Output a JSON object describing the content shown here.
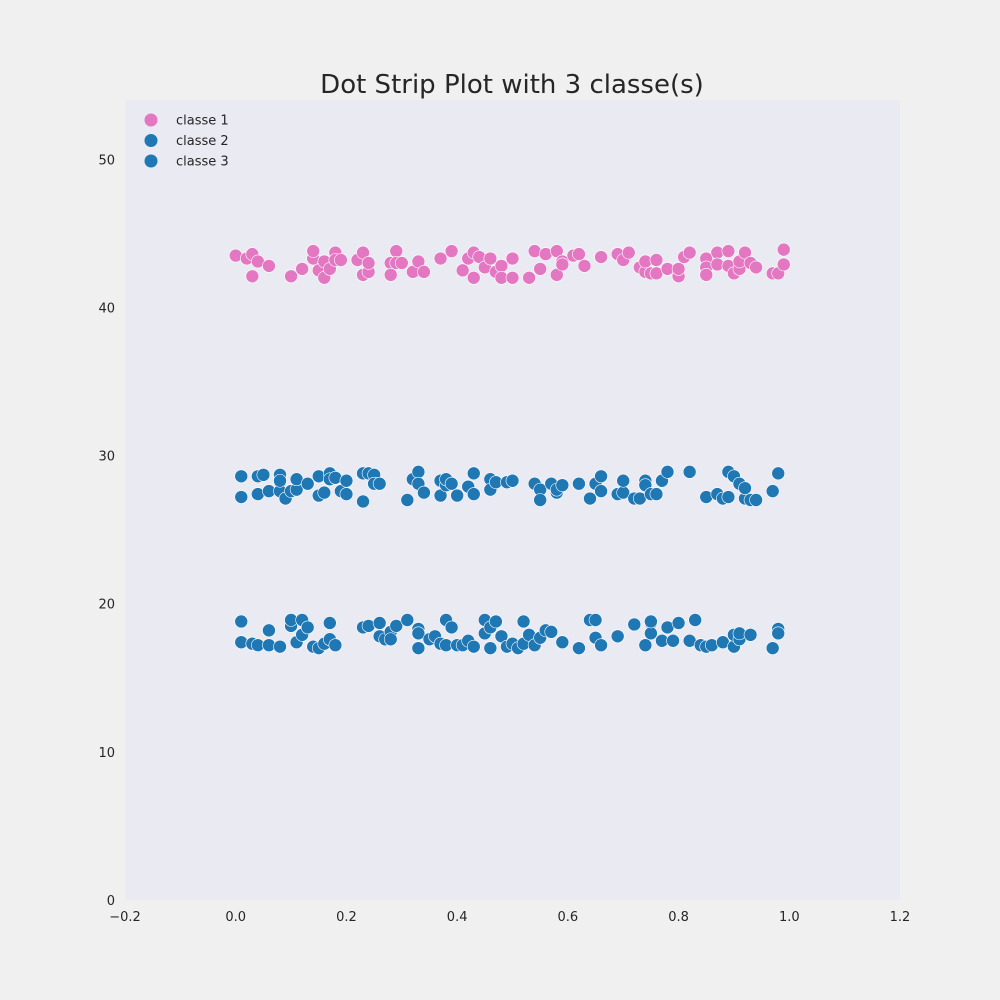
{
  "chart_data": {
    "type": "scatter",
    "title": "Dot Strip Plot with 3 classe(s)",
    "xlabel": "",
    "ylabel": "",
    "xlim": [
      -0.2,
      1.2
    ],
    "ylim": [
      0,
      54
    ],
    "xticks": [
      -0.2,
      0.0,
      0.2,
      0.4,
      0.6,
      0.8,
      1.0,
      1.2
    ],
    "yticks": [
      0,
      10,
      20,
      30,
      40,
      50
    ],
    "xtick_labels": [
      "−0.2",
      "0.0",
      "0.2",
      "0.4",
      "0.6",
      "0.8",
      "1.0",
      "1.2"
    ],
    "ytick_labels": [
      "0",
      "10",
      "20",
      "30",
      "40",
      "50"
    ],
    "grid": false,
    "legend_position": "top-left",
    "background_color": "#eaeaf2",
    "series": [
      {
        "name": "classe 1",
        "color": "#e377c2",
        "x": [
          0.0,
          0.02,
          0.03,
          0.03,
          0.04,
          0.06,
          0.1,
          0.12,
          0.14,
          0.14,
          0.15,
          0.16,
          0.16,
          0.17,
          0.18,
          0.18,
          0.19,
          0.22,
          0.23,
          0.23,
          0.24,
          0.24,
          0.28,
          0.28,
          0.29,
          0.29,
          0.3,
          0.32,
          0.33,
          0.34,
          0.37,
          0.39,
          0.41,
          0.42,
          0.43,
          0.43,
          0.44,
          0.45,
          0.46,
          0.47,
          0.48,
          0.48,
          0.5,
          0.5,
          0.53,
          0.54,
          0.55,
          0.56,
          0.58,
          0.58,
          0.59,
          0.59,
          0.61,
          0.62,
          0.63,
          0.66,
          0.69,
          0.7,
          0.71,
          0.73,
          0.74,
          0.74,
          0.75,
          0.76,
          0.76,
          0.78,
          0.8,
          0.8,
          0.81,
          0.82,
          0.85,
          0.85,
          0.85,
          0.87,
          0.87,
          0.89,
          0.89,
          0.9,
          0.91,
          0.91,
          0.92,
          0.93,
          0.94,
          0.97,
          0.98,
          0.99,
          0.99
        ],
        "y": [
          43.5,
          43.3,
          43.6,
          42.1,
          43.1,
          42.8,
          42.1,
          42.6,
          43.3,
          43.8,
          42.5,
          42.0,
          43.1,
          42.6,
          43.7,
          43.2,
          43.2,
          43.2,
          43.7,
          42.2,
          42.4,
          43.0,
          43.0,
          42.2,
          43.8,
          43.0,
          43.0,
          42.4,
          43.1,
          42.4,
          43.3,
          43.8,
          42.5,
          43.3,
          42.0,
          43.7,
          43.4,
          42.7,
          43.3,
          42.4,
          42.8,
          42.0,
          43.3,
          42.0,
          42.0,
          43.8,
          42.6,
          43.6,
          42.2,
          43.8,
          43.1,
          42.9,
          43.5,
          43.6,
          42.8,
          43.4,
          43.6,
          43.2,
          43.7,
          42.7,
          42.4,
          43.1,
          42.3,
          42.3,
          43.2,
          42.6,
          42.1,
          42.6,
          43.4,
          43.7,
          43.3,
          42.7,
          42.2,
          43.7,
          42.9,
          42.8,
          43.8,
          42.3,
          42.6,
          43.1,
          43.7,
          43.0,
          42.7,
          42.3,
          42.3,
          42.9,
          43.9
        ]
      },
      {
        "name": "classe 2",
        "color": "#1f77b4",
        "x": [
          0.01,
          0.01,
          0.04,
          0.04,
          0.05,
          0.06,
          0.08,
          0.08,
          0.08,
          0.08,
          0.09,
          0.1,
          0.11,
          0.11,
          0.13,
          0.15,
          0.15,
          0.16,
          0.17,
          0.17,
          0.18,
          0.19,
          0.2,
          0.2,
          0.23,
          0.23,
          0.24,
          0.25,
          0.25,
          0.26,
          0.31,
          0.32,
          0.33,
          0.33,
          0.34,
          0.37,
          0.37,
          0.38,
          0.38,
          0.39,
          0.4,
          0.42,
          0.43,
          0.43,
          0.46,
          0.46,
          0.47,
          0.49,
          0.5,
          0.54,
          0.55,
          0.55,
          0.57,
          0.58,
          0.58,
          0.59,
          0.62,
          0.64,
          0.65,
          0.66,
          0.66,
          0.69,
          0.7,
          0.7,
          0.72,
          0.73,
          0.74,
          0.74,
          0.75,
          0.76,
          0.77,
          0.78,
          0.82,
          0.85,
          0.87,
          0.88,
          0.89,
          0.89,
          0.9,
          0.91,
          0.92,
          0.92,
          0.93,
          0.94,
          0.97,
          0.98
        ],
        "y": [
          28.6,
          27.2,
          27.4,
          28.6,
          28.7,
          27.6,
          28.2,
          28.7,
          27.6,
          28.3,
          27.1,
          27.6,
          27.7,
          28.4,
          28.1,
          28.6,
          27.3,
          27.5,
          28.8,
          28.4,
          28.5,
          27.6,
          28.3,
          27.4,
          26.9,
          28.8,
          28.8,
          28.7,
          28.1,
          28.1,
          27.0,
          28.4,
          28.9,
          28.1,
          27.5,
          28.3,
          27.3,
          28.0,
          28.4,
          28.1,
          27.3,
          27.9,
          28.8,
          27.4,
          28.4,
          27.7,
          28.2,
          28.2,
          28.3,
          28.1,
          27.7,
          27.0,
          28.1,
          27.5,
          27.7,
          28.0,
          28.1,
          27.1,
          28.1,
          28.6,
          27.6,
          27.4,
          27.5,
          28.3,
          27.1,
          27.1,
          28.3,
          28.0,
          27.4,
          27.4,
          28.3,
          28.9,
          28.9,
          27.2,
          27.4,
          27.1,
          27.2,
          28.9,
          28.6,
          28.1,
          27.1,
          27.8,
          27.0,
          27.0,
          27.6,
          28.8
        ]
      },
      {
        "name": "classe 3",
        "color": "#1f77b4",
        "x": [
          0.01,
          0.01,
          0.03,
          0.04,
          0.06,
          0.06,
          0.08,
          0.1,
          0.1,
          0.11,
          0.12,
          0.12,
          0.13,
          0.14,
          0.15,
          0.16,
          0.17,
          0.17,
          0.18,
          0.23,
          0.24,
          0.26,
          0.26,
          0.27,
          0.28,
          0.28,
          0.29,
          0.31,
          0.33,
          0.33,
          0.33,
          0.35,
          0.36,
          0.37,
          0.38,
          0.38,
          0.39,
          0.4,
          0.41,
          0.42,
          0.43,
          0.45,
          0.45,
          0.46,
          0.46,
          0.47,
          0.48,
          0.49,
          0.5,
          0.51,
          0.52,
          0.52,
          0.53,
          0.54,
          0.55,
          0.56,
          0.57,
          0.59,
          0.62,
          0.64,
          0.65,
          0.65,
          0.66,
          0.69,
          0.72,
          0.74,
          0.75,
          0.75,
          0.75,
          0.77,
          0.78,
          0.79,
          0.8,
          0.82,
          0.83,
          0.84,
          0.85,
          0.86,
          0.88,
          0.9,
          0.9,
          0.91,
          0.91,
          0.93,
          0.97,
          0.98,
          0.98
        ],
        "y": [
          18.8,
          17.4,
          17.3,
          17.2,
          17.2,
          18.2,
          17.1,
          18.5,
          18.9,
          17.4,
          17.9,
          18.9,
          18.4,
          17.1,
          17.0,
          17.3,
          17.6,
          18.7,
          17.2,
          18.4,
          18.5,
          17.8,
          18.7,
          17.6,
          18.1,
          17.6,
          18.5,
          18.9,
          18.3,
          17.0,
          18.0,
          17.6,
          17.8,
          17.3,
          17.2,
          18.9,
          18.4,
          17.2,
          17.2,
          17.5,
          17.1,
          18.9,
          18.0,
          17.0,
          18.4,
          18.8,
          17.8,
          17.1,
          17.3,
          17.0,
          18.8,
          17.3,
          17.9,
          17.2,
          17.7,
          18.2,
          18.1,
          17.4,
          17.0,
          18.9,
          18.9,
          17.7,
          17.2,
          17.8,
          18.6,
          17.2,
          18.7,
          18.0,
          18.8,
          17.5,
          18.4,
          17.5,
          18.7,
          17.5,
          18.9,
          17.2,
          17.1,
          17.2,
          17.4,
          17.1,
          17.9,
          17.6,
          18.0,
          17.9,
          17.0,
          18.3,
          18.0
        ]
      }
    ]
  }
}
